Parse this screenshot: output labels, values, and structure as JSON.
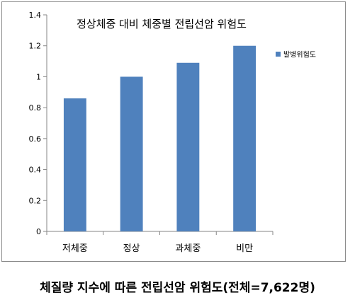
{
  "chart_data": {
    "type": "bar",
    "title": "정상체중 대비 체중별 전립선암 위험도",
    "categories": [
      "저체중",
      "정상",
      "과체중",
      "비만"
    ],
    "series": [
      {
        "name": "발병위험도",
        "values": [
          0.86,
          1.0,
          1.09,
          1.2
        ]
      }
    ],
    "ylim": [
      0,
      1.4
    ],
    "yticks": [
      "0",
      "0.2",
      "0.4",
      "0.6",
      "0.8",
      "1",
      "1.2",
      "1.4"
    ],
    "ytick_values": [
      0,
      0.2,
      0.4,
      0.6,
      0.8,
      1.0,
      1.2,
      1.4
    ],
    "legend_position": "right",
    "grid": false,
    "bar_color": "#4f81bd"
  },
  "caption": "체질량 지수에 따른 전립선암 위험도(전체=7,622명)"
}
